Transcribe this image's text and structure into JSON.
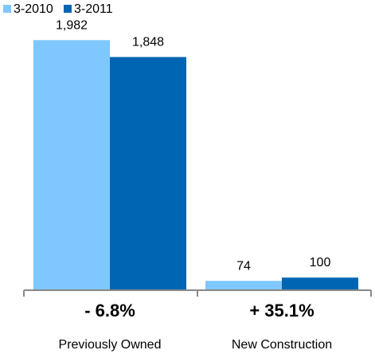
{
  "chart_data": {
    "type": "bar",
    "categories": [
      "Previously Owned",
      "New Construction"
    ],
    "series": [
      {
        "name": "3-2010",
        "values": [
          1982,
          74
        ],
        "color": "#7fc7ff"
      },
      {
        "name": "3-2011",
        "values": [
          1848,
          100
        ],
        "color": "#0066b3"
      }
    ],
    "data_labels": [
      [
        "1,982",
        "74"
      ],
      [
        "1,848",
        "100"
      ]
    ],
    "change_labels": [
      "- 6.8%",
      "+ 35.1%"
    ],
    "ylim": [
      0,
      2300
    ],
    "legend_position": "top-left",
    "grid": false,
    "axis_color": "#888888"
  }
}
